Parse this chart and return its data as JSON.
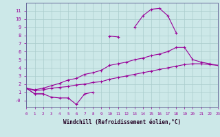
{
  "x": [
    0,
    1,
    2,
    3,
    4,
    5,
    6,
    7,
    8,
    9,
    10,
    11,
    12,
    13,
    14,
    15,
    16,
    17,
    18,
    19,
    20,
    21,
    22,
    23
  ],
  "line_main": [
    1.5,
    0.8,
    0.8,
    null,
    null,
    null,
    null,
    null,
    null,
    null,
    7.9,
    7.8,
    null,
    9.0,
    10.4,
    11.2,
    11.3,
    10.4,
    8.3,
    null,
    null,
    null,
    null,
    null
  ],
  "line_dip": [
    1.5,
    0.8,
    0.8,
    0.4,
    0.3,
    0.3,
    -0.5,
    0.8,
    1.0,
    null,
    null,
    null,
    null,
    null,
    null,
    null,
    null,
    null,
    null,
    null,
    null,
    null,
    null,
    null
  ],
  "line_upper": [
    1.5,
    1.3,
    1.5,
    1.8,
    2.1,
    2.5,
    2.7,
    3.2,
    3.4,
    3.7,
    4.3,
    4.5,
    4.7,
    5.0,
    5.2,
    5.5,
    5.7,
    6.0,
    6.5,
    6.5,
    5.0,
    4.7,
    4.5,
    4.3
  ],
  "line_lower": [
    1.5,
    1.2,
    1.3,
    1.5,
    1.6,
    1.7,
    1.9,
    2.0,
    2.2,
    2.3,
    2.6,
    2.8,
    3.0,
    3.2,
    3.4,
    3.6,
    3.8,
    4.0,
    4.2,
    4.4,
    4.5,
    4.5,
    4.4,
    4.3
  ],
  "color": "#990099",
  "bg_color": "#cce8e8",
  "grid_color": "#aacccc",
  "xlabel": "Windchill (Refroidissement éolien,°C)",
  "xlim": [
    0,
    23
  ],
  "ylim": [
    -0.8,
    12
  ],
  "yticks": [
    0,
    1,
    2,
    3,
    4,
    5,
    6,
    7,
    8,
    9,
    10,
    11
  ],
  "xticks": [
    0,
    1,
    2,
    3,
    4,
    5,
    6,
    7,
    8,
    9,
    10,
    11,
    12,
    13,
    14,
    15,
    16,
    17,
    18,
    19,
    20,
    21,
    22,
    23
  ]
}
